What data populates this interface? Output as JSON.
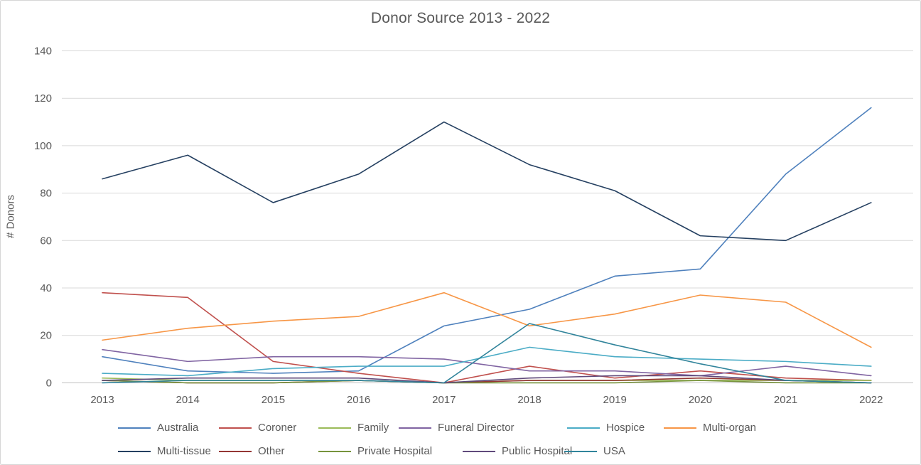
{
  "chart_title": "Donor Source 2013 - 2022",
  "colors": {
    "text": "#595959",
    "gridline": "#d9d9d9",
    "axis_line": "#bfbfbf",
    "frame_border": "#d6d6d6",
    "background": "#ffffff"
  },
  "chart_data": {
    "type": "line",
    "title": "Donor Source 2013 - 2022",
    "xlabel": "",
    "ylabel": "# Donors",
    "ylim": [
      0,
      140
    ],
    "yticks": [
      0,
      20,
      40,
      60,
      80,
      100,
      120,
      140
    ],
    "grid": true,
    "legend_position": "bottom",
    "categories": [
      "2013",
      "2014",
      "2015",
      "2016",
      "2017",
      "2018",
      "2019",
      "2020",
      "2021",
      "2022"
    ],
    "series": [
      {
        "name": "Australia",
        "color": "#4F81BD",
        "values": [
          11,
          5,
          4,
          5,
          24,
          31,
          45,
          48,
          88,
          116
        ]
      },
      {
        "name": "Coroner",
        "color": "#C0504D",
        "values": [
          38,
          36,
          9,
          4,
          0,
          7,
          2,
          5,
          2,
          1
        ]
      },
      {
        "name": "Family",
        "color": "#9BBB59",
        "values": [
          2,
          1,
          1,
          1,
          0,
          1,
          1,
          1,
          1,
          1
        ]
      },
      {
        "name": "Funeral Director",
        "color": "#8064A2",
        "values": [
          14,
          9,
          11,
          11,
          10,
          5,
          5,
          3,
          7,
          3
        ]
      },
      {
        "name": "Hospice",
        "color": "#4BACC6",
        "values": [
          4,
          3,
          6,
          7,
          7,
          15,
          11,
          10,
          9,
          7
        ]
      },
      {
        "name": "Multi-organ",
        "color": "#F79646",
        "values": [
          18,
          23,
          26,
          28,
          38,
          24,
          29,
          37,
          34,
          15
        ]
      },
      {
        "name": "Multi-tissue",
        "color": "#254061",
        "values": [
          86,
          96,
          76,
          88,
          110,
          92,
          81,
          62,
          60,
          76
        ]
      },
      {
        "name": "Other",
        "color": "#943634",
        "values": [
          1,
          0,
          0,
          1,
          0,
          1,
          1,
          2,
          1,
          0
        ]
      },
      {
        "name": "Private Hospital",
        "color": "#77933C",
        "values": [
          1,
          0,
          0,
          1,
          0,
          0,
          0,
          1,
          0,
          0
        ]
      },
      {
        "name": "Public Hospital",
        "color": "#604A7B",
        "values": [
          1,
          2,
          2,
          2,
          0,
          2,
          3,
          3,
          1,
          0
        ]
      },
      {
        "name": "USA",
        "color": "#31849B",
        "values": [
          0,
          1,
          1,
          1,
          0,
          25,
          16,
          8,
          1,
          0
        ]
      }
    ]
  }
}
